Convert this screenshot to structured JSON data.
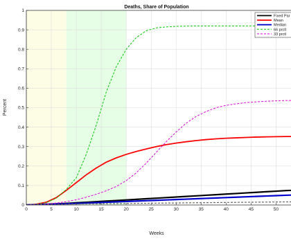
{
  "chart_data": {
    "type": "line",
    "title": "Deaths, Share of Population",
    "xlabel": "Weeks",
    "ylabel": "Percent",
    "xlim": [
      0,
      53
    ],
    "ylim": [
      0,
      1
    ],
    "xticks": [
      0,
      5,
      10,
      15,
      20,
      25,
      30,
      35,
      40,
      45,
      50
    ],
    "yticks": [
      0,
      0.1,
      0.2,
      0.3,
      0.4,
      0.5,
      0.6,
      0.7,
      0.8,
      0.9,
      1
    ],
    "grid": true,
    "legend_position": "top-right",
    "shaded_regions": [
      {
        "x_start": 0,
        "x_end": 8,
        "color": "#fdfde6"
      },
      {
        "x_start": 8,
        "x_end": 20,
        "color": "#e6fde6"
      }
    ],
    "x": [
      0,
      2,
      4,
      6,
      8,
      10,
      12,
      14,
      16,
      18,
      20,
      22,
      24,
      26,
      28,
      30,
      32,
      34,
      36,
      38,
      40,
      42,
      44,
      46,
      48,
      50,
      52,
      53
    ],
    "series": [
      {
        "name": "Fixed Par",
        "color": "#000000",
        "dash": "solid",
        "width": 2.2,
        "values": [
          0,
          0.002,
          0.004,
          0.006,
          0.008,
          0.011,
          0.014,
          0.017,
          0.02,
          0.023,
          0.026,
          0.029,
          0.032,
          0.035,
          0.038,
          0.041,
          0.044,
          0.047,
          0.05,
          0.053,
          0.056,
          0.059,
          0.062,
          0.065,
          0.068,
          0.071,
          0.074,
          0.075
        ]
      },
      {
        "name": "Mean",
        "color": "#ff0000",
        "dash": "solid",
        "width": 1.8,
        "values": [
          0,
          0.004,
          0.014,
          0.038,
          0.075,
          0.115,
          0.155,
          0.19,
          0.22,
          0.242,
          0.26,
          0.275,
          0.288,
          0.3,
          0.31,
          0.318,
          0.325,
          0.331,
          0.336,
          0.34,
          0.343,
          0.345,
          0.347,
          0.349,
          0.35,
          0.351,
          0.352,
          0.352
        ]
      },
      {
        "name": "Median",
        "color": "#0000cc",
        "dash": "solid",
        "width": 2.2,
        "values": [
          0,
          0.0015,
          0.003,
          0.0045,
          0.006,
          0.008,
          0.01,
          0.012,
          0.014,
          0.016,
          0.018,
          0.02,
          0.022,
          0.024,
          0.026,
          0.028,
          0.03,
          0.032,
          0.034,
          0.036,
          0.038,
          0.04,
          0.042,
          0.044,
          0.046,
          0.048,
          0.05,
          0.051
        ]
      },
      {
        "name": "66 prctl",
        "color": "#00cc00",
        "dash": "3,2",
        "width": 1,
        "values": [
          0,
          0.003,
          0.012,
          0.035,
          0.08,
          0.14,
          0.26,
          0.41,
          0.58,
          0.71,
          0.8,
          0.86,
          0.895,
          0.91,
          0.915,
          0.918,
          0.919,
          0.92,
          0.92,
          0.92,
          0.92,
          0.92,
          0.92,
          0.92,
          0.92,
          0.92,
          0.92,
          0.92
        ]
      },
      {
        "name": "33 prctl",
        "color": "#dd00dd",
        "dash": "3,2",
        "width": 1,
        "values": [
          0,
          0.002,
          0.005,
          0.01,
          0.017,
          0.027,
          0.04,
          0.055,
          0.073,
          0.095,
          0.125,
          0.165,
          0.215,
          0.27,
          0.325,
          0.375,
          0.42,
          0.455,
          0.48,
          0.5,
          0.512,
          0.52,
          0.526,
          0.53,
          0.533,
          0.535,
          0.537,
          0.537
        ]
      },
      {
        "name": "",
        "color": "#666666",
        "dash": "3,2",
        "width": 1.2,
        "values": [
          0,
          0.001,
          0.002,
          0.003,
          0.004,
          0.005,
          0.006,
          0.0065,
          0.007,
          0.0075,
          0.008,
          0.0085,
          0.009,
          0.0095,
          0.01,
          0.0105,
          0.011,
          0.0115,
          0.012,
          0.0125,
          0.013,
          0.0135,
          0.014,
          0.0145,
          0.015,
          0.0155,
          0.016,
          0.016
        ]
      }
    ]
  }
}
